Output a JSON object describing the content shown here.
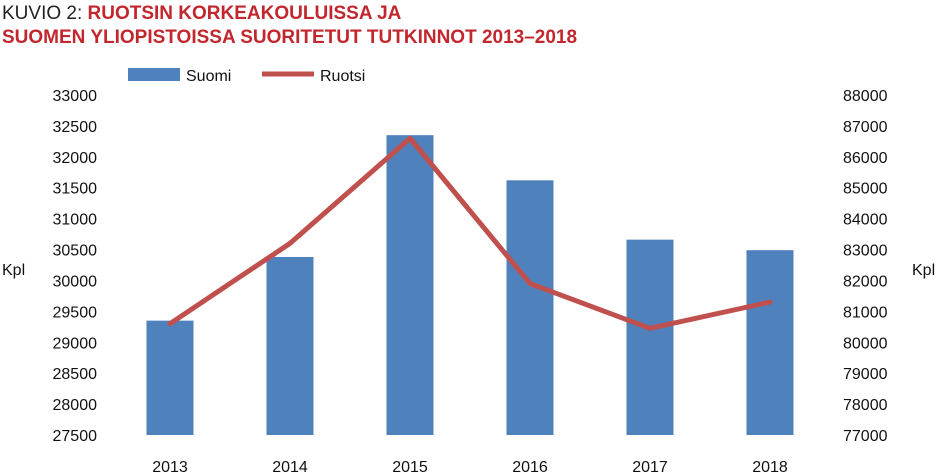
{
  "title": {
    "prefix": "KUVIO 2:",
    "line1": "RUOTSIN KORKEAKOULUISSA JA",
    "line2": "SUOMEN YLIOPISTOISSA SUORITETUT TUTKINNOT 2013–2018"
  },
  "chart_data": {
    "type": "bar",
    "categories": [
      "2013",
      "2014",
      "2015",
      "2016",
      "2017",
      "2018"
    ],
    "series": [
      {
        "name": "Suomi",
        "type": "bar",
        "axis": "left",
        "values": [
          29350,
          30380,
          32350,
          31620,
          30660,
          30490
        ]
      },
      {
        "name": "Ruotsi",
        "type": "line",
        "axis": "right",
        "values": [
          80600,
          83200,
          86600,
          81900,
          80450,
          81300
        ]
      }
    ],
    "ylabel_left": "Kpl",
    "ylabel_right": "Kpl",
    "ylim_left": [
      27500,
      33000
    ],
    "ylim_right": [
      77000,
      88000
    ],
    "yticks_left": [
      "27500",
      "28000",
      "28500",
      "29000",
      "29500",
      "30000",
      "30500",
      "31000",
      "31500",
      "32000",
      "32500",
      "33000"
    ],
    "yticks_right": [
      "77000",
      "78000",
      "79000",
      "80000",
      "81000",
      "82000",
      "83000",
      "84000",
      "85000",
      "86000",
      "87000",
      "88000"
    ],
    "legend_position": "top-left",
    "grid": false,
    "colors": {
      "bar": "#4f81bd",
      "line": "#c0504d"
    }
  }
}
